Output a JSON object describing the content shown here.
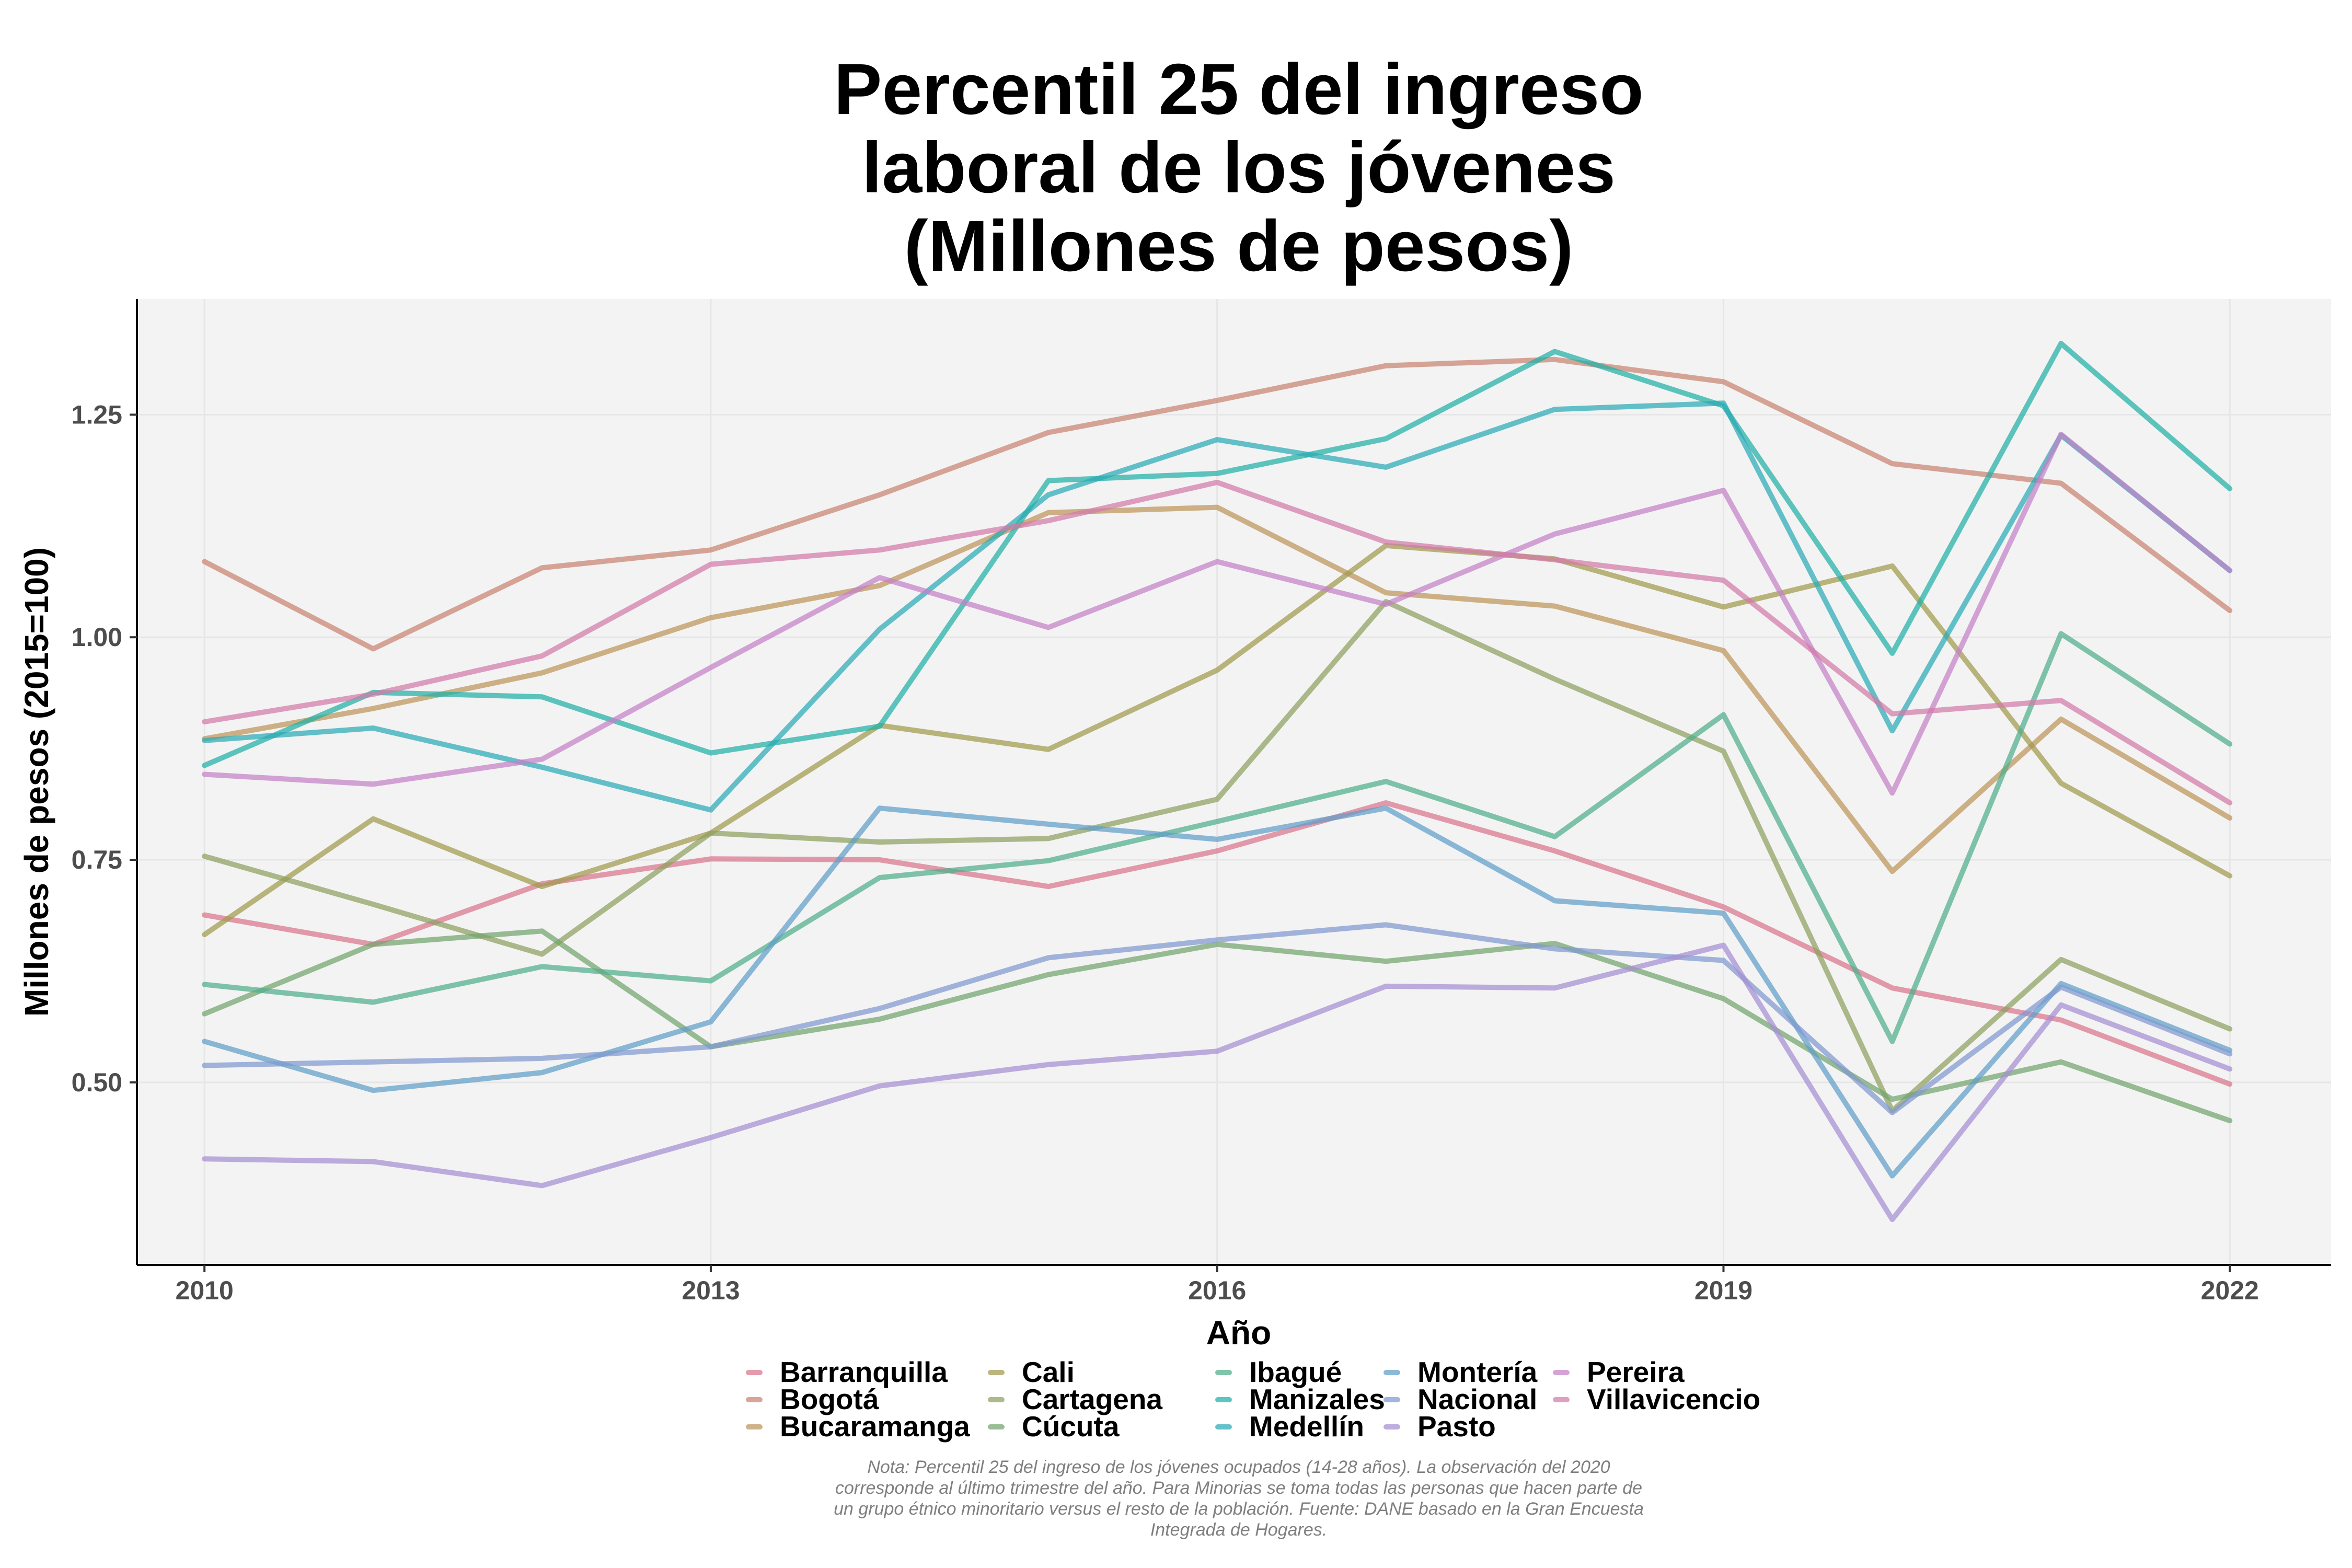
{
  "chart_data": {
    "type": "line",
    "title": [
      "Percentil 25 del ingreso",
      "laboral de los jóvenes",
      "(Millones de pesos)"
    ],
    "xlabel": "Año",
    "ylabel": "Millones de pesos (2015=100)",
    "xlim": [
      2009.6,
      2022.6
    ],
    "ylim": [
      0.295,
      1.38
    ],
    "xticks": [
      2010,
      2013,
      2016,
      2019,
      2022
    ],
    "yticks": [
      0.5,
      0.75,
      1.0,
      1.25
    ],
    "ytick_labels": [
      "0.50",
      "0.75",
      "1.00",
      "1.25"
    ],
    "grid": true,
    "legend_position": "bottom",
    "x": [
      2010,
      2011,
      2012,
      2013,
      2014,
      2015,
      2016,
      2017,
      2018,
      2019,
      2020,
      2021,
      2022
    ],
    "series": [
      {
        "name": "Barranquilla",
        "color": "#D9748C",
        "values": [
          0.688,
          0.655,
          0.723,
          0.751,
          0.75,
          0.72,
          0.76,
          0.814,
          0.76,
          0.697,
          0.606,
          0.57,
          0.498
        ]
      },
      {
        "name": "Bogotá",
        "color": "#C98471",
        "values": [
          1.085,
          0.987,
          1.078,
          1.098,
          1.16,
          1.23,
          1.266,
          1.305,
          1.312,
          1.287,
          1.195,
          1.173,
          1.03
        ]
      },
      {
        "name": "Bucaramanga",
        "color": "#BD9459",
        "values": [
          0.886,
          0.92,
          0.96,
          1.022,
          1.058,
          1.14,
          1.146,
          1.05,
          1.035,
          0.985,
          0.737,
          0.908,
          0.797
        ]
      },
      {
        "name": "Cali",
        "color": "#A09A4C",
        "values": [
          0.666,
          0.796,
          0.72,
          0.78,
          0.901,
          0.874,
          0.963,
          1.103,
          1.088,
          1.034,
          1.08,
          0.836,
          0.732
        ]
      },
      {
        "name": "Cartagena",
        "color": "#8EA05E",
        "values": [
          0.754,
          0.7,
          0.644,
          0.78,
          0.77,
          0.774,
          0.818,
          1.04,
          0.953,
          0.872,
          0.468,
          0.638,
          0.56
        ]
      },
      {
        "name": "Cúcuta",
        "color": "#71A36C",
        "values": [
          0.577,
          0.655,
          0.67,
          0.54,
          0.571,
          0.621,
          0.655,
          0.636,
          0.656,
          0.594,
          0.481,
          0.523,
          0.457
        ]
      },
      {
        "name": "Ibagué",
        "color": "#4FAE8A",
        "values": [
          0.61,
          0.59,
          0.63,
          0.614,
          0.73,
          0.749,
          0.793,
          0.838,
          0.776,
          0.913,
          0.546,
          1.004,
          0.88
        ]
      },
      {
        "name": "Manizales",
        "color": "#20B0A5",
        "values": [
          0.856,
          0.938,
          0.933,
          0.87,
          0.9,
          1.176,
          1.184,
          1.223,
          1.321,
          1.26,
          0.982,
          1.33,
          1.167
        ]
      },
      {
        "name": "Medellín",
        "color": "#2AAAB5",
        "values": [
          0.884,
          0.898,
          0.854,
          0.806,
          1.009,
          1.16,
          1.222,
          1.191,
          1.256,
          1.263,
          0.895,
          1.227,
          1.075
        ]
      },
      {
        "name": "Montería",
        "color": "#5F9EC8",
        "values": [
          0.546,
          0.491,
          0.511,
          0.568,
          0.808,
          0.79,
          0.773,
          0.808,
          0.704,
          0.69,
          0.395,
          0.611,
          0.536
        ]
      },
      {
        "name": "Nacional",
        "color": "#7F98D0",
        "values": [
          0.519,
          0.523,
          0.527,
          0.54,
          0.583,
          0.64,
          0.66,
          0.677,
          0.65,
          0.637,
          0.466,
          0.607,
          0.532
        ]
      },
      {
        "name": "Pasto",
        "color": "#A58FD3",
        "values": [
          0.414,
          0.411,
          0.384,
          0.438,
          0.496,
          0.52,
          0.535,
          0.608,
          0.606,
          0.654,
          0.346,
          0.587,
          0.515
        ]
      },
      {
        "name": "Pereira",
        "color": "#C381C8",
        "values": [
          0.846,
          0.835,
          0.863,
          0.966,
          1.067,
          1.011,
          1.085,
          1.037,
          1.116,
          1.165,
          0.825,
          1.228,
          1.075
        ]
      },
      {
        "name": "Villavicencio",
        "color": "#D27AA8",
        "values": [
          0.905,
          0.936,
          0.979,
          1.082,
          1.098,
          1.131,
          1.174,
          1.107,
          1.087,
          1.064,
          0.914,
          0.929,
          0.814
        ]
      }
    ],
    "note": "Nota: Percentil 25 del ingreso de los jóvenes ocupados (14-28 años). La observación del 2020 corresponde al último trimestre del año. Para Minorias se toma todas las personas que hacen parte de un grupo étnico minoritario versus el resto de la población. Fuente: DANE basado en la Gran Encuesta Integrada de Hogares.",
    "note_lines": [
      "Nota: Percentil 25 del ingreso de los jóvenes ocupados (14-28 años). La observación del 2020",
      "corresponde al último trimestre del año. Para Minorias se toma todas las personas que hacen parte de",
      "un grupo étnico minoritario versus el resto de la población. Fuente: DANE basado en la Gran Encuesta",
      "Integrada de Hogares."
    ]
  }
}
